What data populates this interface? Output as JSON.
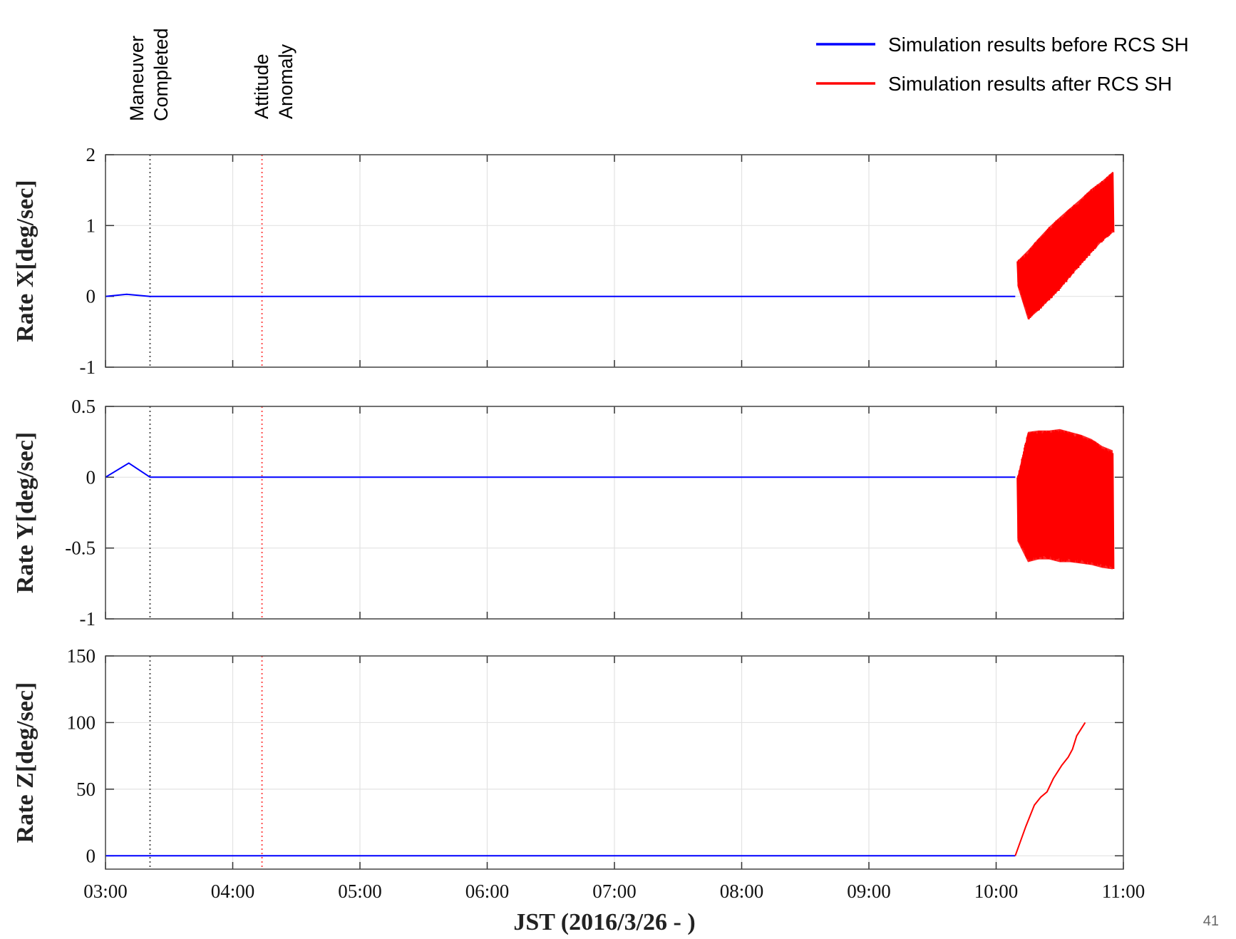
{
  "page_number": "41",
  "legend": [
    {
      "label": "Simulation results before  RCS SH",
      "color": "#0000ff"
    },
    {
      "label": "Simulation results after  RCS SH",
      "color": "#ff0000"
    }
  ],
  "events": [
    {
      "lines": [
        "Maneuver",
        "Completed"
      ],
      "time_hours": 3.35,
      "color": "#555555"
    },
    {
      "lines": [
        "Attitude",
        "Anomaly"
      ],
      "time_hours": 4.23,
      "color": "#ff4d4d"
    }
  ],
  "chart_data": [
    {
      "type": "line",
      "ylabel": "Rate X[deg/sec]",
      "xlim": [
        "03:00",
        "11:00"
      ],
      "ylim": [
        -1,
        2
      ],
      "yticks": [
        2,
        1,
        0,
        -1
      ],
      "grid": true,
      "series": [
        {
          "name": "Simulation results before  RCS SH",
          "x": [
            "03:00",
            "03:10",
            "03:21",
            "04:00",
            "06:00",
            "08:00",
            "10:00",
            "10:09"
          ],
          "y": [
            0,
            0.03,
            0,
            0,
            0,
            0,
            0,
            0
          ]
        },
        {
          "name": "Simulation results after  RCS SH",
          "style": "oscillation band",
          "x": [
            "10:10",
            "10:15",
            "10:20",
            "10:25",
            "10:30",
            "10:35",
            "10:40",
            "10:45",
            "10:50",
            "10:55"
          ],
          "y_upper": [
            0.5,
            0.65,
            0.82,
            0.98,
            1.12,
            1.25,
            1.38,
            1.52,
            1.63,
            1.76
          ],
          "y_lower": [
            0.15,
            -0.33,
            -0.2,
            -0.05,
            0.1,
            0.28,
            0.45,
            0.62,
            0.78,
            0.9
          ]
        }
      ]
    },
    {
      "type": "line",
      "ylabel": "Rate Y[deg/sec]",
      "xlim": [
        "03:00",
        "11:00"
      ],
      "ylim": [
        -1,
        0.5
      ],
      "yticks": [
        0.5,
        0,
        -0.5,
        -1
      ],
      "grid": true,
      "series": [
        {
          "name": "Simulation results before  RCS SH",
          "x": [
            "03:00",
            "03:11",
            "03:21",
            "04:00",
            "06:00",
            "08:00",
            "10:00",
            "10:09"
          ],
          "y": [
            0,
            0.1,
            0,
            0,
            0,
            0,
            0,
            0
          ]
        },
        {
          "name": "Simulation results after  RCS SH",
          "style": "oscillation band",
          "x": [
            "10:10",
            "10:15",
            "10:20",
            "10:25",
            "10:30",
            "10:35",
            "10:40",
            "10:45",
            "10:50",
            "10:55"
          ],
          "y_upper": [
            0.0,
            0.32,
            0.33,
            0.33,
            0.34,
            0.32,
            0.3,
            0.27,
            0.22,
            0.19
          ],
          "y_lower": [
            -0.45,
            -0.6,
            -0.58,
            -0.58,
            -0.6,
            -0.6,
            -0.61,
            -0.62,
            -0.64,
            -0.65
          ]
        }
      ]
    },
    {
      "type": "line",
      "ylabel": "Rate Z[deg/sec]",
      "xlabel": "JST (2016/3/26 - )",
      "xlim": [
        "03:00",
        "11:00"
      ],
      "xticks": [
        "03:00",
        "04:00",
        "05:00",
        "06:00",
        "07:00",
        "08:00",
        "09:00",
        "10:00",
        "11:00"
      ],
      "ylim": [
        -10,
        150
      ],
      "yticks": [
        150,
        100,
        50,
        0
      ],
      "grid": true,
      "series": [
        {
          "name": "Simulation results before  RCS SH",
          "x": [
            "03:00",
            "04:00",
            "06:00",
            "08:00",
            "10:00",
            "10:09"
          ],
          "y": [
            0,
            0,
            0,
            0,
            0,
            0
          ]
        },
        {
          "name": "Simulation results after  RCS SH",
          "x": [
            "10:09",
            "10:14",
            "10:18",
            "10:21",
            "10:24",
            "10:27",
            "10:31",
            "10:34",
            "10:36",
            "10:38",
            "10:42"
          ],
          "y": [
            0,
            22,
            38,
            44,
            48,
            58,
            68,
            74,
            80,
            90,
            100
          ]
        }
      ]
    }
  ]
}
